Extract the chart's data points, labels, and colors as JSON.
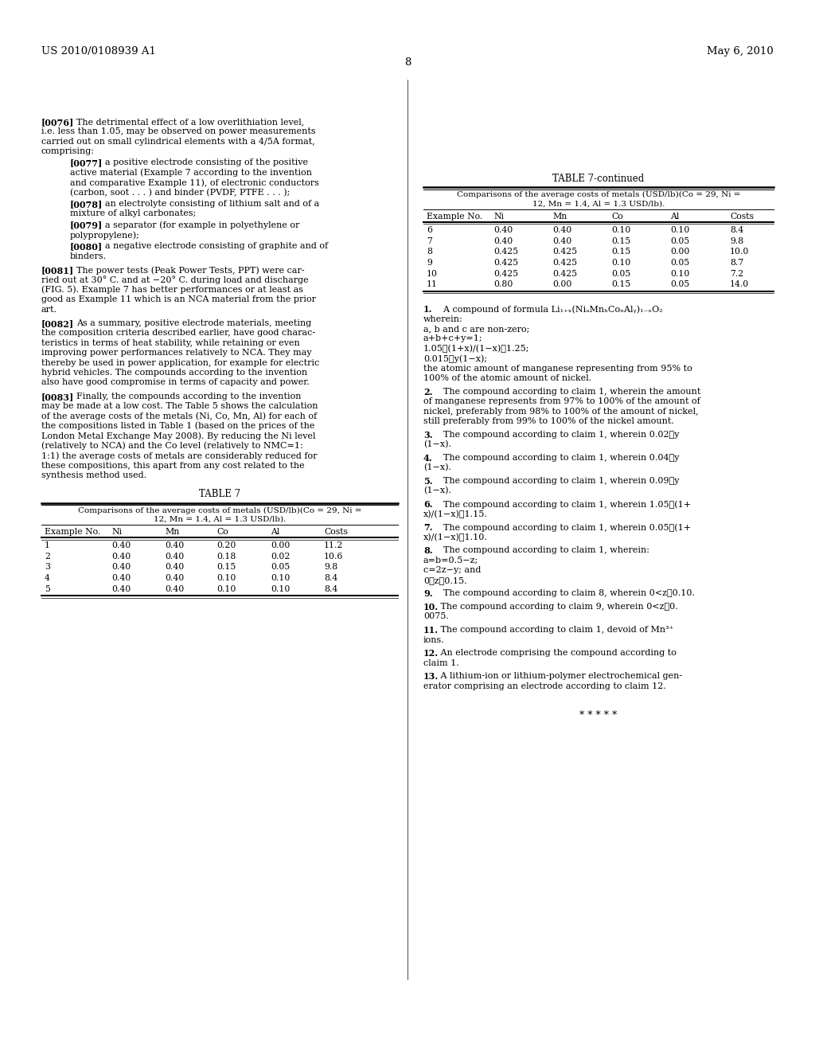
{
  "header_left": "US 2010/0108939 A1",
  "header_right": "May 6, 2010",
  "page_number": "8",
  "bg_color": "#ffffff",
  "table7cont_title": "TABLE 7-continued",
  "table7cont_caption_line1": "Comparisons of the average costs of metals (USD/lb)(Co = 29, Ni =",
  "table7cont_caption_line2": "12, Mn = 1.4, Al = 1.3 USD/lb).",
  "table7cont_headers": [
    "Example No.",
    "Ni",
    "Mn",
    "Co",
    "Al",
    "Costs"
  ],
  "table7cont_data": [
    [
      "6",
      "0.40",
      "0.40",
      "0.10",
      "0.10",
      "8.4"
    ],
    [
      "7",
      "0.40",
      "0.40",
      "0.15",
      "0.05",
      "9.8"
    ],
    [
      "8",
      "0.425",
      "0.425",
      "0.15",
      "0.00",
      "10.0"
    ],
    [
      "9",
      "0.425",
      "0.425",
      "0.10",
      "0.05",
      "8.7"
    ],
    [
      "10",
      "0.425",
      "0.425",
      "0.05",
      "0.10",
      "7.2"
    ],
    [
      "11",
      "0.80",
      "0.00",
      "0.15",
      "0.05",
      "14.0"
    ]
  ],
  "table7_title": "TABLE 7",
  "table7_caption_line1": "Comparisons of the average costs of metals (USD/lb)(Co = 29, Ni =",
  "table7_caption_line2": "12, Mn = 1.4, Al = 1.3 USD/lb).",
  "table7_headers": [
    "Example No.",
    "Ni",
    "Mn",
    "Co",
    "Al",
    "Costs"
  ],
  "table7_data": [
    [
      "1",
      "0.40",
      "0.40",
      "0.20",
      "0.00",
      "11.2"
    ],
    [
      "2",
      "0.40",
      "0.40",
      "0.18",
      "0.02",
      "10.6"
    ],
    [
      "3",
      "0.40",
      "0.40",
      "0.15",
      "0.05",
      "9.8"
    ],
    [
      "4",
      "0.40",
      "0.40",
      "0.10",
      "0.10",
      "8.4"
    ],
    [
      "5",
      "0.40",
      "0.40",
      "0.10",
      "0.10",
      "8.4"
    ]
  ]
}
